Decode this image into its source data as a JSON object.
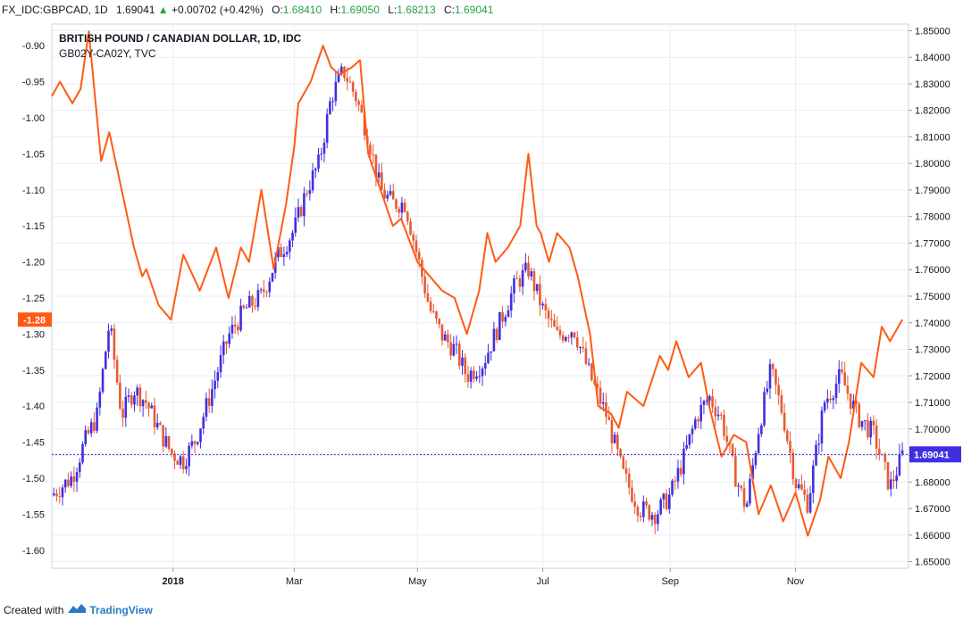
{
  "header": {
    "symbol": "FX_IDC:GBPCAD, 1D",
    "price": "1.69041",
    "change": "+0.00702 (+0.42%)",
    "open_label": "O:",
    "open": "1.68410",
    "high_label": "H:",
    "high": "1.69050",
    "low_label": "L:",
    "low": "1.68213",
    "close_label": "C:",
    "close": "1.69041"
  },
  "footer": {
    "created_with": "Created with",
    "brand": "TradingView"
  },
  "colors": {
    "up": "#3f2fe0",
    "down": "#e85a32",
    "spread_line": "#ff5a14",
    "last_price": "#3f2fe0",
    "grid": "#e9ecf1",
    "axis": "#131722"
  },
  "icons": {
    "change_up": "triangle-up-icon",
    "logo": "tradingview-logo-icon"
  },
  "chart_data": {
    "type": "candlestick",
    "title": "BRITISH POUND / CANADIAN DOLLAR, 1D, IDC",
    "subtitle": "GB02Y-CA02Y, TVC",
    "x_tick_labels": [
      "2018",
      "Mar",
      "May",
      "Jul",
      "Sep",
      "Nov"
    ],
    "x_tick_days": [
      59,
      118,
      178,
      239,
      301,
      362
    ],
    "x_range_days": [
      0,
      417
    ],
    "left_axis": {
      "ylim": [
        -1.625,
        -0.87
      ],
      "ticks": [
        -0.9,
        -0.95,
        -1.0,
        -1.05,
        -1.1,
        -1.15,
        -1.2,
        -1.25,
        -1.3,
        -1.35,
        -1.4,
        -1.45,
        -1.5,
        -1.55,
        -1.6
      ]
    },
    "right_axis": {
      "ylim": [
        1.6475,
        1.8525
      ],
      "ticks": [
        1.85,
        1.84,
        1.83,
        1.82,
        1.81,
        1.8,
        1.79,
        1.78,
        1.77,
        1.76,
        1.75,
        1.74,
        1.73,
        1.72,
        1.71,
        1.7,
        1.69,
        1.68,
        1.67,
        1.66,
        1.65
      ]
    },
    "last_price": {
      "value": 1.69041,
      "label": "1.69041"
    },
    "spread_last": {
      "value": -1.28,
      "label": "-1.28"
    },
    "price_series": {
      "name": "GBPCAD",
      "x": [
        0,
        10,
        16,
        22,
        28,
        34,
        40,
        46,
        52,
        58,
        64,
        70,
        78,
        86,
        94,
        102,
        110,
        118,
        124,
        130,
        136,
        142,
        148,
        154,
        160,
        166,
        172,
        178,
        184,
        190,
        196,
        202,
        210,
        218,
        226,
        232,
        239,
        246,
        254,
        262,
        270,
        278,
        286,
        294,
        301,
        308,
        314,
        320,
        326,
        332,
        338,
        344,
        350,
        356,
        362,
        368,
        376,
        384,
        392,
        400,
        408,
        414
      ],
      "values": [
        1.675,
        1.682,
        1.695,
        1.705,
        1.74,
        1.705,
        1.715,
        1.71,
        1.7,
        1.691,
        1.688,
        1.696,
        1.715,
        1.735,
        1.745,
        1.75,
        1.765,
        1.775,
        1.79,
        1.8,
        1.825,
        1.835,
        1.825,
        1.81,
        1.79,
        1.785,
        1.785,
        1.765,
        1.745,
        1.735,
        1.73,
        1.72,
        1.725,
        1.74,
        1.755,
        1.76,
        1.745,
        1.735,
        1.738,
        1.72,
        1.705,
        1.683,
        1.67,
        1.668,
        1.675,
        1.69,
        1.705,
        1.712,
        1.704,
        1.684,
        1.67,
        1.7,
        1.722,
        1.705,
        1.68,
        1.672,
        1.71,
        1.72,
        1.705,
        1.698,
        1.678,
        1.69
      ]
    },
    "spread_series": {
      "name": "GB02Y-CA02Y",
      "x": [
        0,
        4,
        10,
        14,
        18,
        24,
        28,
        34,
        40,
        44,
        46,
        52,
        58,
        64,
        72,
        80,
        86,
        92,
        96,
        102,
        108,
        114,
        118,
        120,
        126,
        132,
        136,
        140,
        146,
        150,
        154,
        160,
        166,
        170,
        174,
        178,
        184,
        190,
        196,
        202,
        208,
        212,
        216,
        222,
        228,
        232,
        236,
        238,
        242,
        246,
        252,
        256,
        262,
        266,
        272,
        276,
        280,
        288,
        296,
        300,
        304,
        310,
        316,
        320,
        326,
        332,
        338,
        344,
        350,
        356,
        362,
        368,
        374,
        378,
        384,
        388,
        394,
        400,
        404,
        408,
        414
      ],
      "values": [
        -0.97,
        -0.95,
        -0.98,
        -0.96,
        -0.88,
        -1.06,
        -1.02,
        -1.1,
        -1.18,
        -1.22,
        -1.21,
        -1.26,
        -1.28,
        -1.19,
        -1.24,
        -1.18,
        -1.25,
        -1.18,
        -1.2,
        -1.1,
        -1.21,
        -1.12,
        -1.04,
        -0.98,
        -0.95,
        -0.9,
        -0.93,
        -0.94,
        -0.93,
        -0.92,
        -1.05,
        -1.1,
        -1.15,
        -1.14,
        -1.17,
        -1.2,
        -1.22,
        -1.24,
        -1.25,
        -1.3,
        -1.24,
        -1.16,
        -1.2,
        -1.18,
        -1.15,
        -1.05,
        -1.15,
        -1.16,
        -1.2,
        -1.16,
        -1.18,
        -1.22,
        -1.3,
        -1.4,
        -1.41,
        -1.43,
        -1.38,
        -1.4,
        -1.33,
        -1.35,
        -1.31,
        -1.36,
        -1.34,
        -1.4,
        -1.47,
        -1.44,
        -1.45,
        -1.55,
        -1.51,
        -1.56,
        -1.52,
        -1.58,
        -1.53,
        -1.47,
        -1.5,
        -1.45,
        -1.34,
        -1.36,
        -1.29,
        -1.31,
        -1.28
      ]
    }
  }
}
